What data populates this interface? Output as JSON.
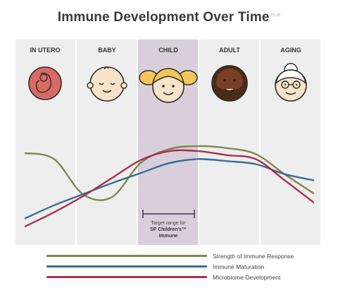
{
  "title": "Immune Development Over Time",
  "title_ref": "21,28",
  "stages": [
    {
      "label": "IN UTERO",
      "icon": "fetus-icon"
    },
    {
      "label": "BABY",
      "icon": "baby-face-icon"
    },
    {
      "label": "CHILD",
      "icon": "child-face-icon"
    },
    {
      "label": "ADULT",
      "icon": "adult-face-icon"
    },
    {
      "label": "AGING",
      "icon": "elderly-face-icon"
    }
  ],
  "target_range": {
    "line1": "Target range for",
    "line2": "SP Children's™",
    "line3": "Immune"
  },
  "chart_data": {
    "type": "line",
    "x": [
      0,
      1,
      2,
      3,
      4,
      5,
      6,
      7,
      8,
      9,
      10
    ],
    "xlabel": "",
    "ylabel": "",
    "ylim": [
      0,
      10
    ],
    "categories": [
      "IN UTERO",
      "BABY",
      "CHILD",
      "ADULT",
      "AGING"
    ],
    "series": [
      {
        "name": "Strength of Immune Response",
        "color": "#7f8750",
        "values": [
          7.4,
          6.8,
          3.3,
          3.0,
          6.4,
          7.8,
          8.1,
          7.9,
          7.3,
          5.3,
          3.4
        ]
      },
      {
        "name": "Immune Maturation",
        "color": "#3a6d95",
        "values": [
          0.9,
          2.2,
          3.3,
          4.4,
          5.4,
          6.4,
          6.8,
          6.6,
          6.3,
          5.3,
          4.7
        ]
      },
      {
        "name": "Microbiome Development",
        "color": "#a8304f",
        "values": [
          0.1,
          1.5,
          3.1,
          4.9,
          6.7,
          7.6,
          7.6,
          7.2,
          6.8,
          4.7,
          2.5
        ]
      }
    ],
    "highlight_range": "CHILD",
    "grid": false,
    "legend": "bottom"
  },
  "colors": {
    "column_bg": "#eeeeee",
    "highlight_bg": "#d9cfdb",
    "skin": "#f7e3c9",
    "dark_skin": "#7a3f25",
    "hair_blonde": "#f4c65a",
    "fetus_bg": "#d86a64",
    "outline": "#2c2c2c"
  }
}
